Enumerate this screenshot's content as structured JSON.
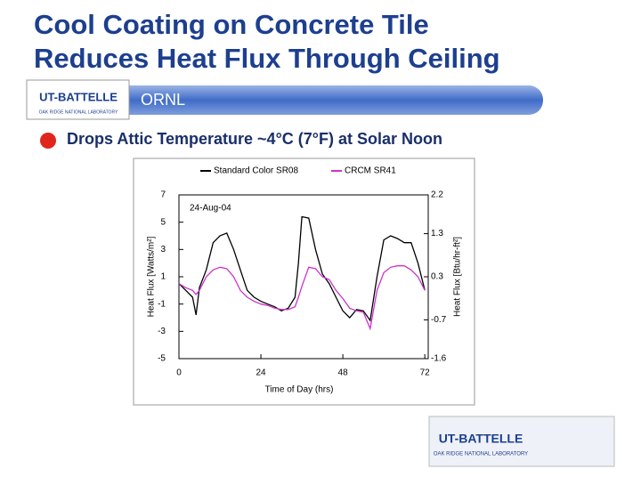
{
  "slide": {
    "title_lines": [
      "Cool Coating on Concrete Tile",
      "Reduces Heat Flux Through Ceiling"
    ],
    "banner": "ORNL",
    "bullet": "Drops Attic Temperature ~4°C (7°F) at Solar Noon",
    "logo_name": "UT-BATTELLE",
    "logo_sub": "OAK RIDGE NATIONAL LABORATORY"
  },
  "chart_data": {
    "type": "line",
    "xlabel": "Time of Day (hrs)",
    "ylabel": "Heat Flux [Watts/m²]",
    "y2label": "Heat Flux [Btu/hr-ft²]",
    "annotation": "24-Aug-04",
    "x": [
      0,
      2,
      4,
      5,
      6,
      8,
      10,
      12,
      14,
      16,
      18,
      20,
      22,
      24,
      26,
      28,
      30,
      32,
      34,
      35,
      36,
      38,
      40,
      42,
      44,
      46,
      48,
      50,
      52,
      54,
      56,
      58,
      60,
      62,
      64,
      66,
      68,
      70,
      72
    ],
    "series": [
      {
        "name": "Standard Color SR08",
        "color": "#000000",
        "values": [
          0.5,
          0,
          -0.5,
          -1.8,
          0.2,
          1.5,
          3.5,
          4,
          4.2,
          3,
          1.5,
          0,
          -0.5,
          -0.8,
          -1,
          -1.2,
          -1.5,
          -1.3,
          -0.5,
          2,
          5.4,
          5.3,
          3,
          1.2,
          0.5,
          -0.5,
          -1.5,
          -2,
          -1.4,
          -1.5,
          -2.2,
          1,
          3.7,
          4,
          3.8,
          3.5,
          3.5,
          2,
          0
        ]
      },
      {
        "name": "CRCM SR41",
        "color": "#cc33cc",
        "values": [
          0.5,
          0.2,
          0,
          -0.3,
          0,
          1,
          1.5,
          1.7,
          1.6,
          1,
          0,
          -0.5,
          -0.8,
          -1,
          -1.1,
          -1.3,
          -1.4,
          -1.4,
          -1.2,
          -0.5,
          0.3,
          1.7,
          1.6,
          1,
          0.8,
          0,
          -0.6,
          -1.3,
          -1.5,
          -1.6,
          -2.8,
          0,
          1.3,
          1.7,
          1.8,
          1.8,
          1.5,
          1,
          0
        ]
      }
    ],
    "xlim": [
      0,
      73
    ],
    "xticks": [
      0,
      24,
      48,
      72
    ],
    "ylim": [
      -5,
      7
    ],
    "yticks": [
      -5,
      -3,
      -1,
      1,
      3,
      5,
      7
    ],
    "y2lim": [
      -1.6,
      2.2
    ],
    "y2ticks": [
      -1.6,
      -0.7,
      0.3,
      1.3,
      2.2
    ]
  }
}
